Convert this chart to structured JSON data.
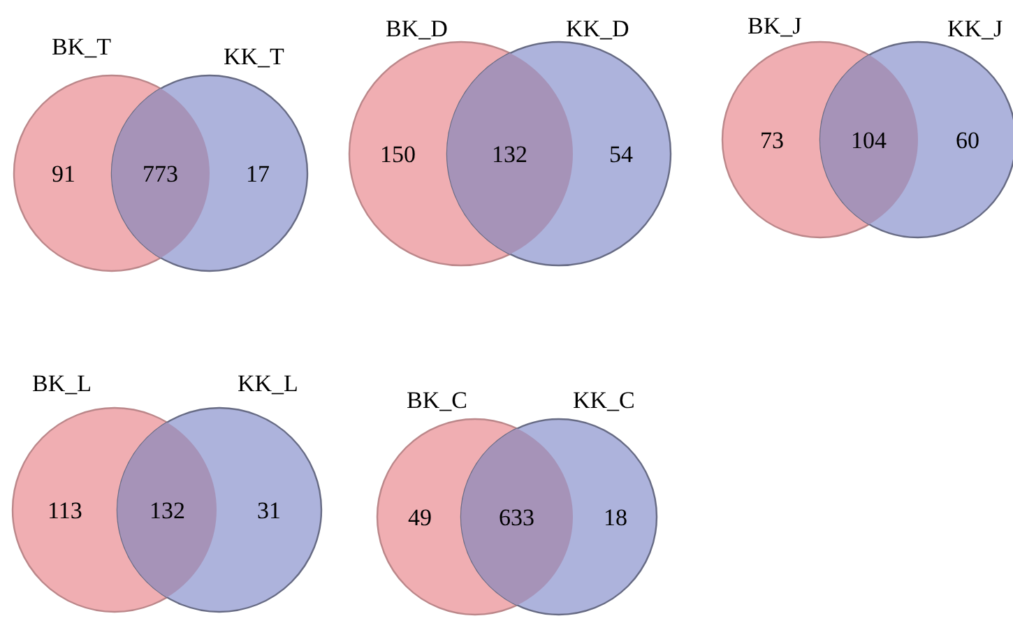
{
  "chart_data": [
    {
      "type": "other",
      "annotations": [
        "BK_T",
        "KK_T"
      ],
      "categories": [
        null,
        null,
        null
      ],
      "values": [
        91,
        773,
        17
      ],
      "colors": [
        "#f0aeb2",
        "#a693b8",
        "#adb3dc"
      ],
      "data_labels": true
    },
    {
      "type": "other",
      "annotations": [
        "BK_D",
        "KK_D"
      ],
      "categories": [
        null,
        null,
        null
      ],
      "values": [
        150,
        132,
        54
      ],
      "colors": [
        "#f0aeb2",
        "#a693b8",
        "#adb3dc"
      ],
      "data_labels": true
    },
    {
      "type": "other",
      "annotations": [
        "BK_J",
        "KK_J"
      ],
      "categories": [
        null,
        null,
        null
      ],
      "values": [
        73,
        104,
        60
      ],
      "colors": [
        "#f0aeb2",
        "#a693b8",
        "#adb3dc"
      ],
      "data_labels": true
    },
    {
      "type": "other",
      "annotations": [
        "BK_L",
        "KK_L"
      ],
      "categories": [
        null,
        null,
        null
      ],
      "values": [
        113,
        132,
        31
      ],
      "colors": [
        "#f0aeb2",
        "#a693b8",
        "#adb3dc"
      ],
      "data_labels": true
    },
    {
      "type": "other",
      "annotations": [
        "BK_C",
        "KK_C"
      ],
      "categories": [
        null,
        null,
        null
      ],
      "values": [
        49,
        633,
        18
      ],
      "colors": [
        "#f0aeb2",
        "#a693b8",
        "#adb3dc"
      ],
      "data_labels": true
    }
  ]
}
